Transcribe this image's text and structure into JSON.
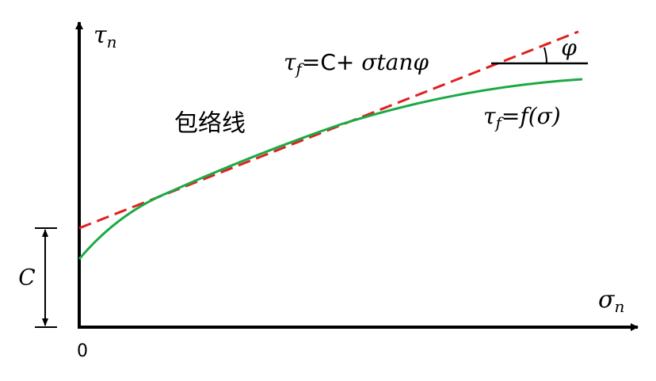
{
  "axes": {
    "y_label": {
      "symbol": "τ",
      "subscript": "n"
    },
    "x_label": {
      "symbol": "σ",
      "subscript": "n"
    },
    "origin": "0",
    "intercept": "C"
  },
  "labels": {
    "envelope": "包络线",
    "line_equation": {
      "symbol": "τ",
      "subscript": "f",
      "rest": "=C+ ",
      "tail": "σtanφ"
    },
    "curve_equation": {
      "symbol": "τ",
      "subscript": "f",
      "rest": "=f(σ)"
    },
    "angle": "φ"
  }
}
